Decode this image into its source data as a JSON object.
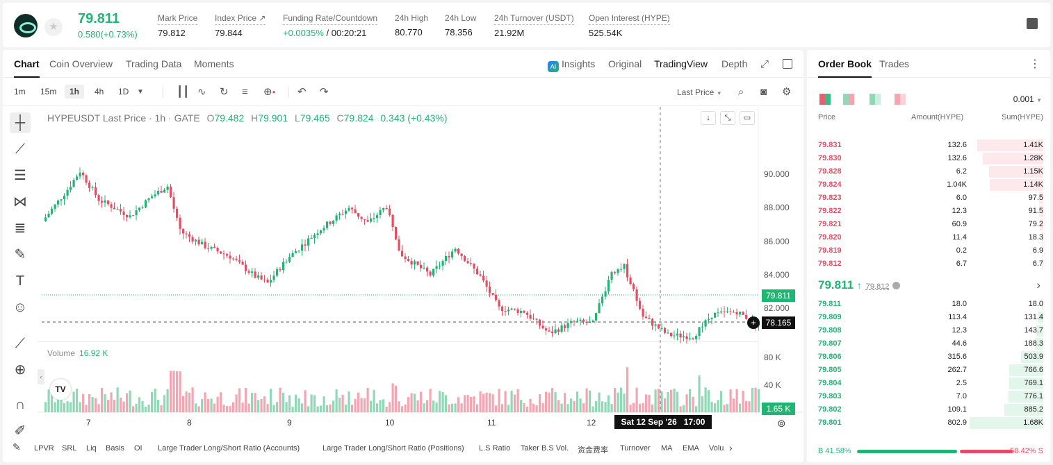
{
  "ticker": {
    "last": "79.811",
    "change": "0.580(+0.73%)"
  },
  "stats": [
    {
      "label": "Mark Price",
      "value": "79.812"
    },
    {
      "label": "Index Price ↗",
      "value": "79.844"
    },
    {
      "label": "Funding Rate/Countdown",
      "value_up": "+0.0035%",
      "value": " / 00:20:21"
    },
    {
      "label": "24h High",
      "value": "80.770"
    },
    {
      "label": "24h Low",
      "value": "78.356"
    },
    {
      "label": "24h Turnover (USDT)",
      "value": "21.92M"
    },
    {
      "label": "Open Interest (HYPE)",
      "value": "525.54K"
    }
  ],
  "chart_tabs": [
    "Chart",
    "Coin Overview",
    "Trading Data",
    "Moments"
  ],
  "view_tabs": {
    "insights": "Insights",
    "original": "Original",
    "tradingview": "TradingView",
    "depth": "Depth"
  },
  "intervals": [
    "1m",
    "15m",
    "1h",
    "4h",
    "1D"
  ],
  "selected_interval": "1h",
  "last_price_select": "Last Price",
  "legend": {
    "symbol": "HYPEUSDT Last Price · 1h · GATE",
    "o": "79.482",
    "h": "79.901",
    "l": "79.465",
    "c": "79.824",
    "chg": "0.343 (+0.43%)"
  },
  "volume_legend": {
    "label": "Volume",
    "value": "16.92 K"
  },
  "price_axis": [
    "90.000",
    "88.000",
    "86.000",
    "84.000",
    "82.000"
  ],
  "volume_axis": [
    "80 K",
    "40 K"
  ],
  "price_tags": {
    "current": "79.811",
    "crosshair": "78.165",
    "volume": "1.65 K"
  },
  "x_axis": [
    "7",
    "8",
    "9",
    "10",
    "11",
    "12"
  ],
  "crosshair_date": "Sat 12 Sep '26",
  "crosshair_time": "17:00",
  "indicators": [
    "LPVR",
    "SRL",
    "Liq",
    "Basis",
    "OI",
    "Large Trader Long/Short Ratio (Accounts)",
    "Large Trader Long/Short Ratio (Positions)",
    "L.S Ratio",
    "Taker B.S Vol.",
    "资金费率",
    "Turnover",
    "MA",
    "EMA",
    "Volu"
  ],
  "orderbook": {
    "tabs": [
      "Order Book",
      "Trades"
    ],
    "precision": "0.001",
    "headers": {
      "price": "Price",
      "amount": "Amount(HYPE)",
      "sum": "Sum(HYPE)"
    },
    "asks": [
      {
        "price": "79.831",
        "amount": "132.6",
        "sum": "1.41K",
        "depth": 0.9
      },
      {
        "price": "79.830",
        "amount": "132.6",
        "sum": "1.28K",
        "depth": 0.82
      },
      {
        "price": "79.828",
        "amount": "6.2",
        "sum": "1.15K",
        "depth": 0.74
      },
      {
        "price": "79.824",
        "amount": "1.04K",
        "sum": "1.14K",
        "depth": 0.73
      },
      {
        "price": "79.823",
        "amount": "6.0",
        "sum": "97.5",
        "depth": 0.06
      },
      {
        "price": "79.822",
        "amount": "12.3",
        "sum": "91.5",
        "depth": 0.06
      },
      {
        "price": "79.821",
        "amount": "60.9",
        "sum": "79.2",
        "depth": 0.05
      },
      {
        "price": "79.820",
        "amount": "11.4",
        "sum": "18.3",
        "depth": 0.012
      },
      {
        "price": "79.819",
        "amount": "0.2",
        "sum": "6.9",
        "depth": 0.005
      },
      {
        "price": "79.812",
        "amount": "6.7",
        "sum": "6.7",
        "depth": 0.004
      }
    ],
    "mid": {
      "price": "79.811",
      "mark": "79.812"
    },
    "bids": [
      {
        "price": "79.811",
        "amount": "18.0",
        "sum": "18.0",
        "depth": 0.011
      },
      {
        "price": "79.809",
        "amount": "113.4",
        "sum": "131.4",
        "depth": 0.08
      },
      {
        "price": "79.808",
        "amount": "12.3",
        "sum": "143.7",
        "depth": 0.09
      },
      {
        "price": "79.807",
        "amount": "44.6",
        "sum": "188.3",
        "depth": 0.11
      },
      {
        "price": "79.806",
        "amount": "315.6",
        "sum": "503.9",
        "depth": 0.3
      },
      {
        "price": "79.805",
        "amount": "262.7",
        "sum": "766.6",
        "depth": 0.46
      },
      {
        "price": "79.804",
        "amount": "2.5",
        "sum": "769.1",
        "depth": 0.46
      },
      {
        "price": "79.803",
        "amount": "7.0",
        "sum": "776.1",
        "depth": 0.47
      },
      {
        "price": "79.802",
        "amount": "109.1",
        "sum": "885.2",
        "depth": 0.53
      },
      {
        "price": "79.801",
        "amount": "802.9",
        "sum": "1.68K",
        "depth": 1.0
      }
    ],
    "ratio": {
      "buy": "B 41.58%",
      "sell": "58.42% S"
    }
  },
  "colors": {
    "up": "#21b573",
    "down": "#e74c62",
    "up_vol": "#8fd9b6",
    "down_vol": "#f4a5b1"
  }
}
